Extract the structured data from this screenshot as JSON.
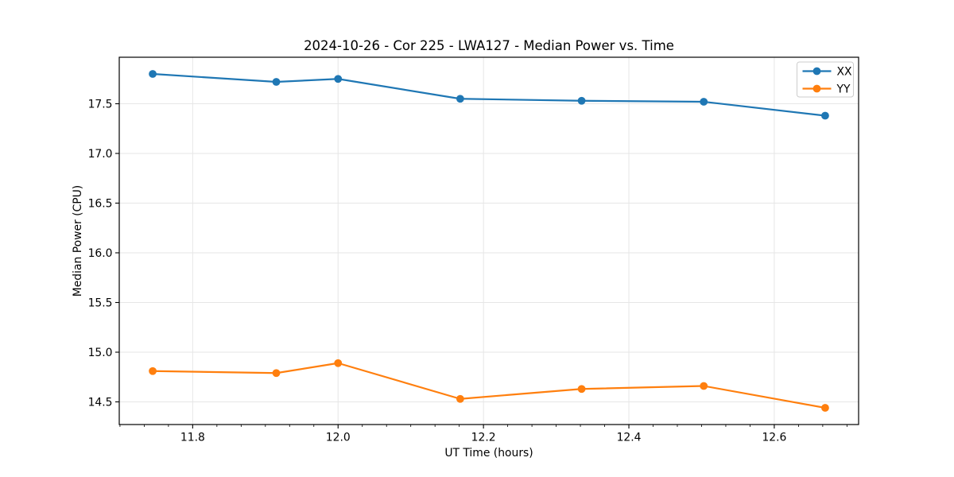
{
  "chart_data": {
    "type": "line",
    "title": "2024-10-26 - Cor 225 - LWA127 - Median Power vs. Time",
    "xlabel": "UT Time (hours)",
    "ylabel": "Median Power (CPU)",
    "x": [
      11.745,
      11.915,
      12.0,
      12.168,
      12.335,
      12.503,
      12.67
    ],
    "series": [
      {
        "name": "XX",
        "color": "#1f77b4",
        "values": [
          17.8,
          17.72,
          17.75,
          17.55,
          17.53,
          17.52,
          17.38
        ]
      },
      {
        "name": "YY",
        "color": "#ff7f0e",
        "values": [
          14.81,
          14.79,
          14.89,
          14.53,
          14.63,
          14.66,
          14.44
        ]
      }
    ],
    "xlim": [
      11.699,
      12.716
    ],
    "ylim": [
      14.272,
      17.968
    ],
    "xticks": [
      {
        "value": 11.8,
        "label": "11.8"
      },
      {
        "value": 12.0,
        "label": "12.0"
      },
      {
        "value": 12.2,
        "label": "12.2"
      },
      {
        "value": 12.4,
        "label": "12.4"
      },
      {
        "value": 12.6,
        "label": "12.6"
      }
    ],
    "yticks": [
      {
        "value": 14.5,
        "label": "14.5"
      },
      {
        "value": 15.0,
        "label": "15.0"
      },
      {
        "value": 15.5,
        "label": "15.5"
      },
      {
        "value": 16.0,
        "label": "16.0"
      },
      {
        "value": 16.5,
        "label": "16.5"
      },
      {
        "value": 17.0,
        "label": "17.0"
      },
      {
        "value": 17.5,
        "label": "17.5"
      }
    ],
    "minor_xtick_step": 0.033333,
    "marker": "circle",
    "grid": true,
    "legend": {
      "position": "upper right",
      "entries": [
        "XX",
        "YY"
      ]
    },
    "colors": {
      "grid": "#e6e6e6",
      "spine": "#000000",
      "tick": "#000000",
      "legend_border": "#cccccc",
      "legend_background": "#ffffff"
    }
  }
}
